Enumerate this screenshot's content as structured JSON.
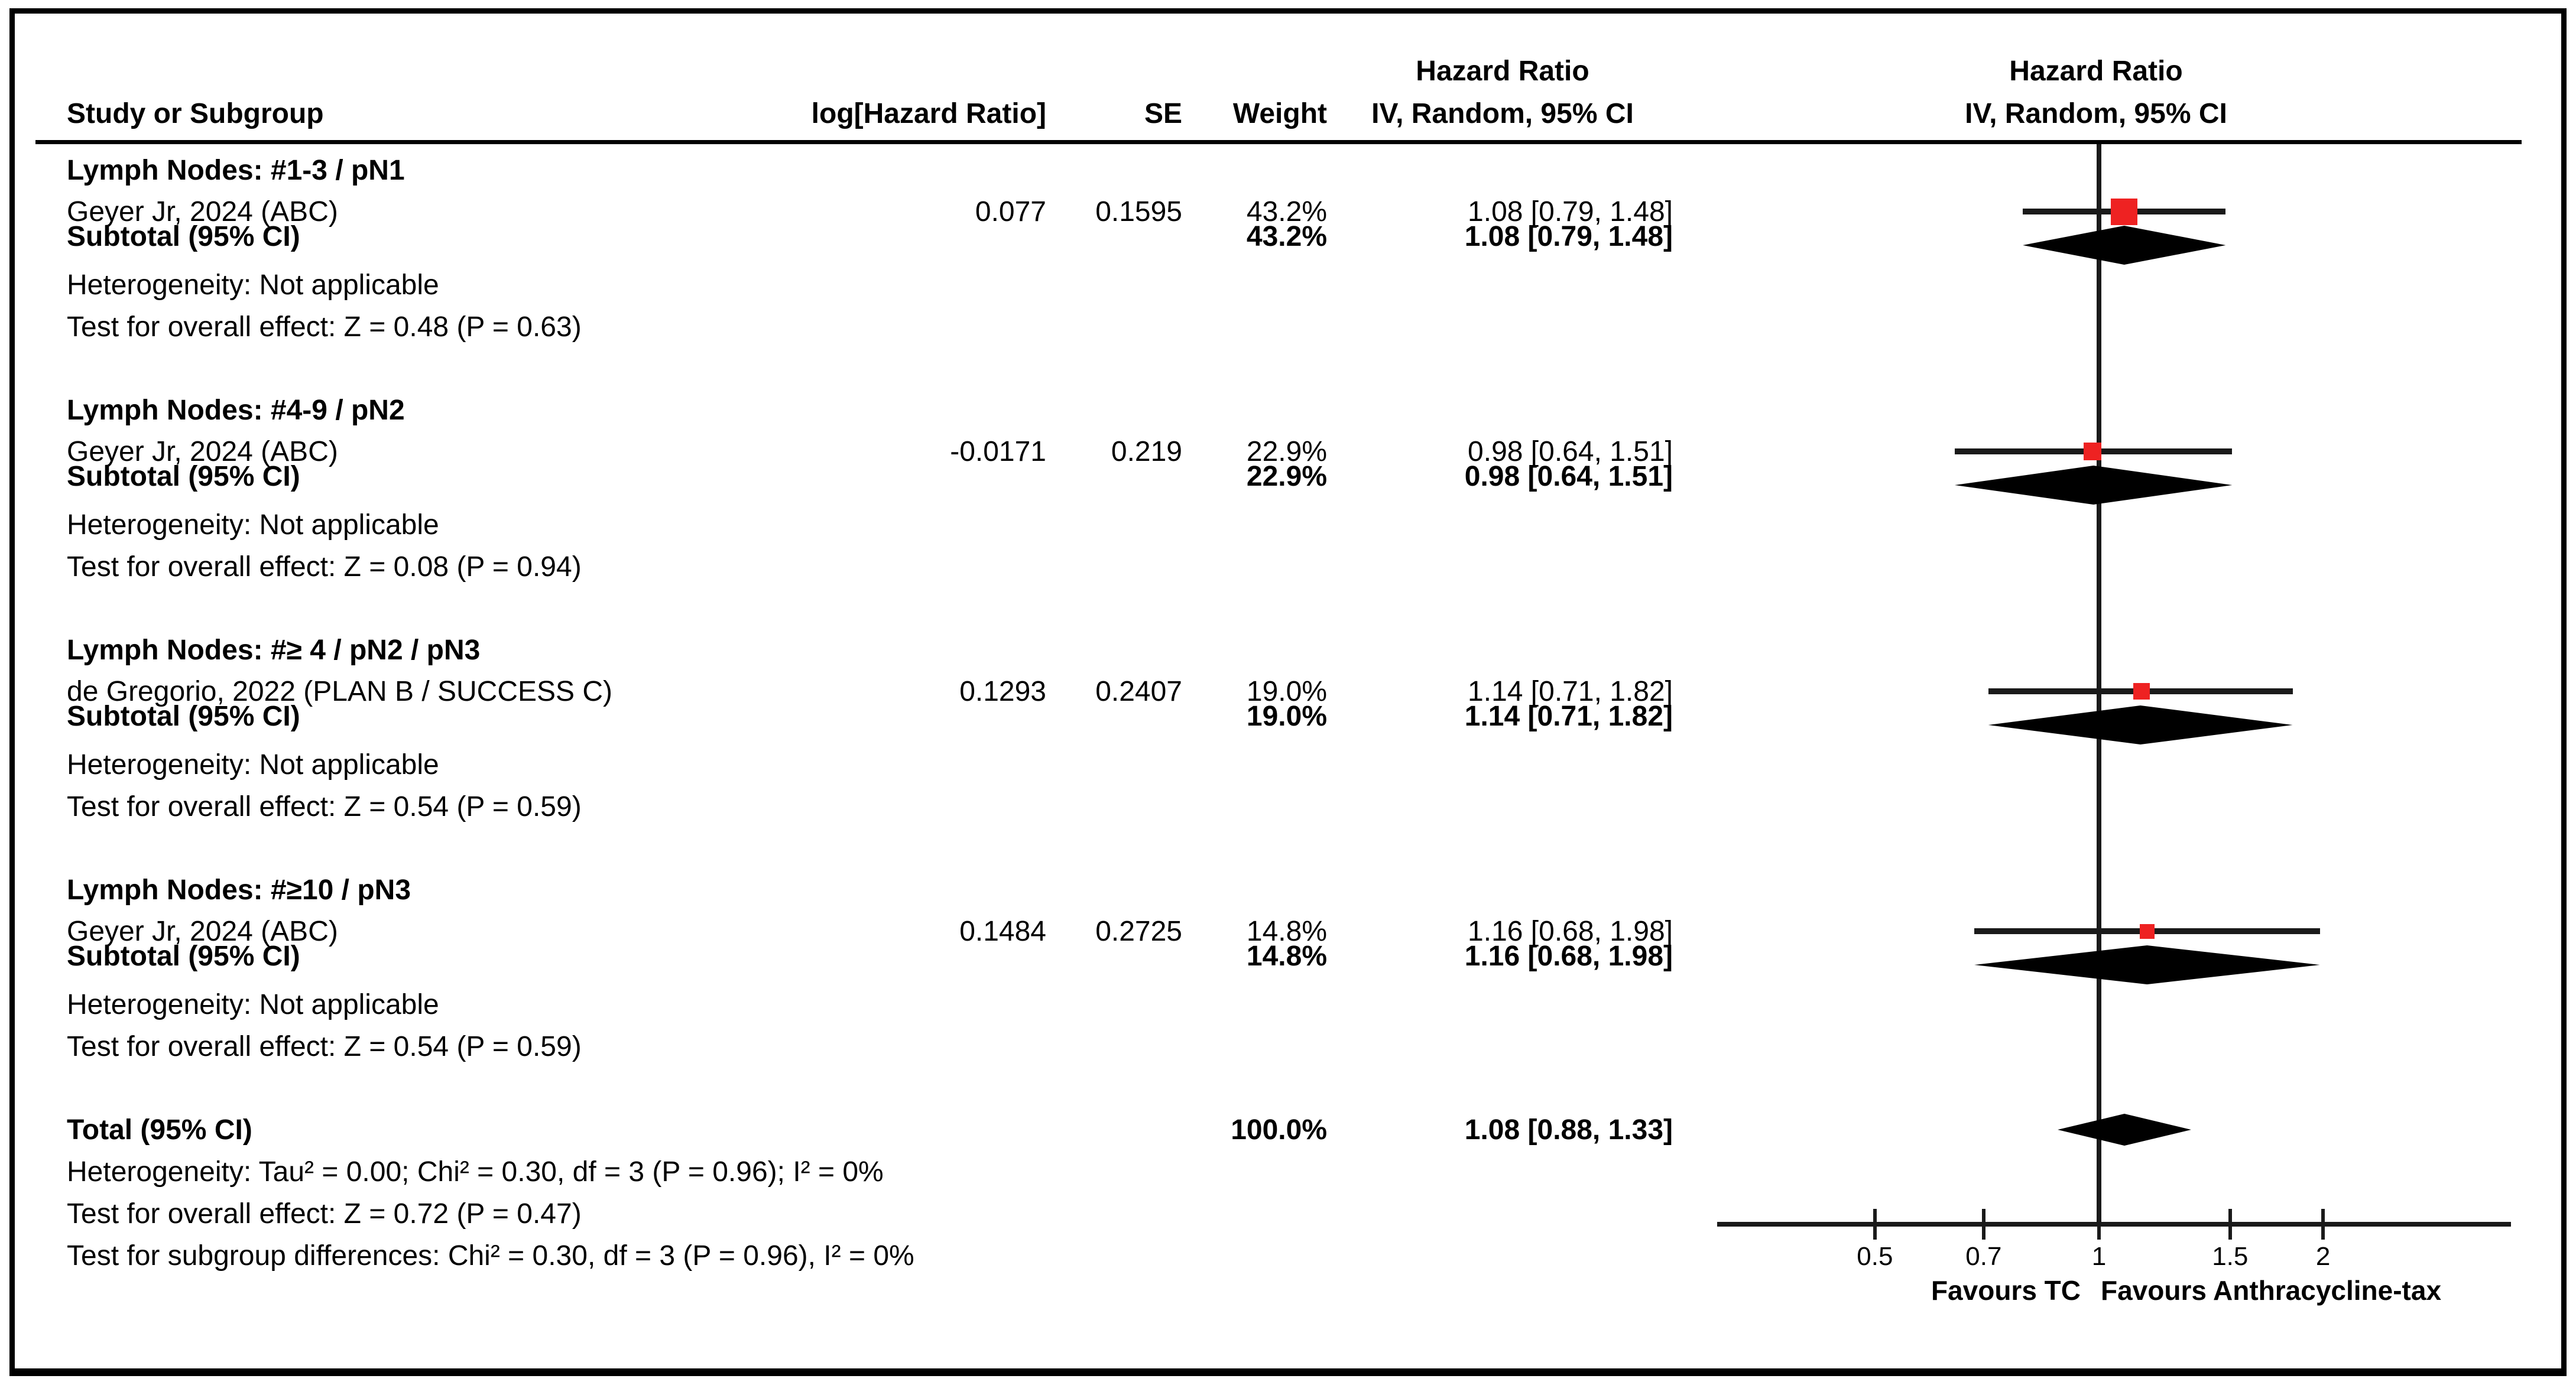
{
  "colors": {
    "marker_red": "#ee2222",
    "line_black": "#000000"
  },
  "table_header": {
    "study_col": "Study or Subgroup",
    "log_hr_col": "log[Hazard Ratio]",
    "se_col": "SE",
    "weight_col": "Weight",
    "hr_title": "Hazard Ratio",
    "hr_subtitle": "IV, Random, 95% CI"
  },
  "plot_header": {
    "title": "Hazard Ratio",
    "subtitle": "IV, Random, 95% CI"
  },
  "groups": [
    {
      "heading": "Lymph Nodes: #1-3 / pN1",
      "study": {
        "name": "Geyer Jr, 2024 (ABC)",
        "log_hr": "0.077",
        "se": "0.1595",
        "weight": "43.2%",
        "ci": "1.08 [0.79, 1.48]"
      },
      "subtotal_label": "Subtotal (95% CI)",
      "subtotal": {
        "weight": "43.2%",
        "ci": "1.08 [0.79, 1.48]"
      },
      "heterogeneity": "Heterogeneity: Not applicable",
      "test": "Test for overall effect: Z = 0.48 (P = 0.63)"
    },
    {
      "heading": "Lymph Nodes: #4-9 / pN2",
      "study": {
        "name": "Geyer Jr, 2024 (ABC)",
        "log_hr": "-0.0171",
        "se": "0.219",
        "weight": "22.9%",
        "ci": "0.98 [0.64, 1.51]"
      },
      "subtotal_label": "Subtotal (95% CI)",
      "subtotal": {
        "weight": "22.9%",
        "ci": "0.98 [0.64, 1.51]"
      },
      "heterogeneity": "Heterogeneity: Not applicable",
      "test": "Test for overall effect: Z = 0.08 (P = 0.94)"
    },
    {
      "heading": "Lymph Nodes: #≥ 4 / pN2 / pN3",
      "study": {
        "name": "de Gregorio, 2022 (PLAN B / SUCCESS C)",
        "log_hr": "0.1293",
        "se": "0.2407",
        "weight": "19.0%",
        "ci": "1.14 [0.71, 1.82]"
      },
      "subtotal_label": "Subtotal (95% CI)",
      "subtotal": {
        "weight": "19.0%",
        "ci": "1.14 [0.71, 1.82]"
      },
      "heterogeneity": "Heterogeneity: Not applicable",
      "test": "Test for overall effect: Z = 0.54 (P = 0.59)"
    },
    {
      "heading": "Lymph Nodes: #≥10 / pN3",
      "study": {
        "name": "Geyer Jr, 2024 (ABC)",
        "log_hr": "0.1484",
        "se": "0.2725",
        "weight": "14.8%",
        "ci": "1.16 [0.68, 1.98]"
      },
      "subtotal_label": "Subtotal (95% CI)",
      "subtotal": {
        "weight": "14.8%",
        "ci": "1.16 [0.68, 1.98]"
      },
      "heterogeneity": "Heterogeneity: Not applicable",
      "test": "Test for overall effect: Z = 0.54 (P = 0.59)"
    }
  ],
  "total": {
    "label": "Total (95% CI)",
    "weight": "100.0%",
    "ci": "1.08 [0.88, 1.33]",
    "heterogeneity": "Heterogeneity: Tau² = 0.00; Chi² = 0.30, df = 3 (P = 0.96); I² = 0%",
    "test": "Test for overall effect: Z = 0.72 (P = 0.47)",
    "subgroup_test": "Test for subgroup differences: Chi² = 0.30, df = 3 (P = 0.96), I² = 0%"
  },
  "axis": {
    "favours_left": "Favours TC",
    "favours_right": "Favours Anthracycline-tax"
  },
  "chart_data": {
    "type": "forest",
    "x_scale": "log",
    "null_line": 1,
    "axis_ticks": [
      0.5,
      0.7,
      1,
      1.5,
      2
    ],
    "xlim": [
      0.31,
      3.6
    ],
    "effect_measure": "Hazard Ratio, IV Random 95% CI",
    "groups": [
      {
        "name": "Lymph Nodes: #1-3 / pN1",
        "studies": [
          {
            "label": "Geyer Jr, 2024 (ABC)",
            "log_hr": 0.077,
            "se": 0.1595,
            "weight_pct": 43.2,
            "hr": 1.08,
            "ci_low": 0.79,
            "ci_high": 1.48
          }
        ],
        "subtotal": {
          "weight_pct": 43.2,
          "hr": 1.08,
          "ci_low": 0.79,
          "ci_high": 1.48
        },
        "heterogeneity": "Not applicable",
        "overall_effect": {
          "Z": 0.48,
          "P": 0.63
        }
      },
      {
        "name": "Lymph Nodes: #4-9 / pN2",
        "studies": [
          {
            "label": "Geyer Jr, 2024 (ABC)",
            "log_hr": -0.0171,
            "se": 0.219,
            "weight_pct": 22.9,
            "hr": 0.98,
            "ci_low": 0.64,
            "ci_high": 1.51
          }
        ],
        "subtotal": {
          "weight_pct": 22.9,
          "hr": 0.98,
          "ci_low": 0.64,
          "ci_high": 1.51
        },
        "heterogeneity": "Not applicable",
        "overall_effect": {
          "Z": 0.08,
          "P": 0.94
        }
      },
      {
        "name": "Lymph Nodes: #≥ 4 / pN2 / pN3",
        "studies": [
          {
            "label": "de Gregorio, 2022 (PLAN B / SUCCESS C)",
            "log_hr": 0.1293,
            "se": 0.2407,
            "weight_pct": 19.0,
            "hr": 1.14,
            "ci_low": 0.71,
            "ci_high": 1.82
          }
        ],
        "subtotal": {
          "weight_pct": 19.0,
          "hr": 1.14,
          "ci_low": 0.71,
          "ci_high": 1.82
        },
        "heterogeneity": "Not applicable",
        "overall_effect": {
          "Z": 0.54,
          "P": 0.59
        }
      },
      {
        "name": "Lymph Nodes: #≥10 / pN3",
        "studies": [
          {
            "label": "Geyer Jr, 2024 (ABC)",
            "log_hr": 0.1484,
            "se": 0.2725,
            "weight_pct": 14.8,
            "hr": 1.16,
            "ci_low": 0.68,
            "ci_high": 1.98
          }
        ],
        "subtotal": {
          "weight_pct": 14.8,
          "hr": 1.16,
          "ci_low": 0.68,
          "ci_high": 1.98
        },
        "heterogeneity": "Not applicable",
        "overall_effect": {
          "Z": 0.54,
          "P": 0.59
        }
      }
    ],
    "total": {
      "weight_pct": 100.0,
      "hr": 1.08,
      "ci_low": 0.88,
      "ci_high": 1.33,
      "tau2": 0.0,
      "chi2": 0.3,
      "df": 3,
      "P_het": 0.96,
      "I2_pct": 0,
      "overall_effect": {
        "Z": 0.72,
        "P": 0.47
      },
      "subgroup_diff": {
        "chi2": 0.3,
        "df": 3,
        "P": 0.96,
        "I2_pct": 0
      }
    }
  }
}
